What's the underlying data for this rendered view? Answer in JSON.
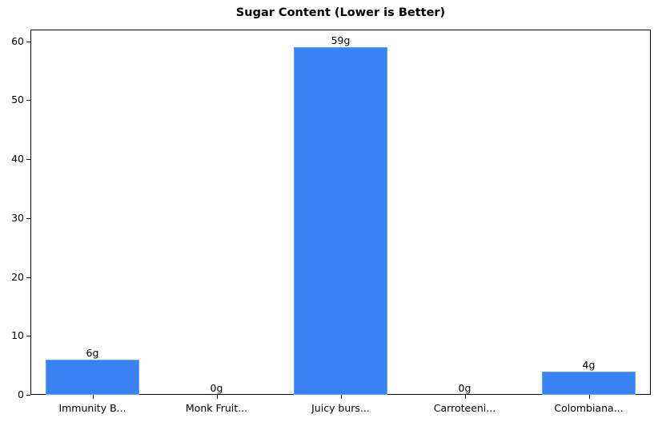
{
  "chart_data": {
    "type": "bar",
    "title": "Sugar Content (Lower is Better)",
    "xlabel": "",
    "ylabel": "",
    "categories": [
      "Immunity B...",
      "Monk Fruit...",
      "Juicy burs...",
      "Carroteeni...",
      "Colombiana..."
    ],
    "values": [
      6,
      0,
      59,
      0,
      4
    ],
    "data_labels": [
      "6g",
      "0g",
      "59g",
      "0g",
      "4g"
    ],
    "ylim": [
      0,
      62
    ],
    "yticks": [
      0,
      10,
      20,
      30,
      40,
      50,
      60
    ],
    "grid": false,
    "legend": null,
    "bar_color": "#3b82f6"
  }
}
